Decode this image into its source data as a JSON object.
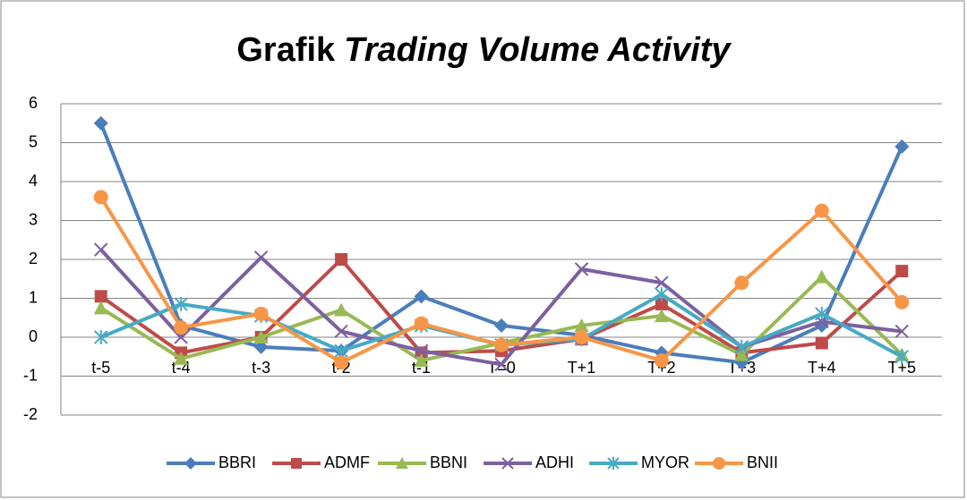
{
  "chart_data": {
    "type": "line",
    "title": [
      "Grafik",
      "Trading Volume Activity"
    ],
    "categories": [
      "t-5",
      "t-4",
      "t-3",
      "t-2",
      "t-1",
      "T=0",
      "T+1",
      "T+2",
      "T+3",
      "T+4",
      "T+5"
    ],
    "series": [
      {
        "name": "BBRI",
        "color": "#4a7ebb",
        "marker": "diamond",
        "values": [
          5.5,
          0.3,
          -0.25,
          -0.35,
          1.05,
          0.3,
          0.05,
          -0.4,
          -0.65,
          0.3,
          4.9
        ]
      },
      {
        "name": "ADMF",
        "color": "#be4b48",
        "marker": "square",
        "values": [
          1.05,
          -0.4,
          0.0,
          2.0,
          -0.4,
          -0.35,
          -0.05,
          0.85,
          -0.4,
          -0.15,
          1.7
        ]
      },
      {
        "name": "BBNI",
        "color": "#98b954",
        "marker": "triangle",
        "values": [
          0.75,
          -0.55,
          0.0,
          0.7,
          -0.6,
          -0.15,
          0.3,
          0.55,
          -0.45,
          1.55,
          -0.45
        ]
      },
      {
        "name": "ADHI",
        "color": "#7d60a0",
        "marker": "x",
        "values": [
          2.25,
          0.0,
          2.05,
          0.15,
          -0.35,
          -0.7,
          1.75,
          1.4,
          -0.25,
          0.4,
          0.15
        ]
      },
      {
        "name": "MYOR",
        "color": "#46aac5",
        "marker": "star",
        "values": [
          0.0,
          0.85,
          0.55,
          -0.35,
          0.3,
          -0.2,
          -0.05,
          1.1,
          -0.25,
          0.6,
          -0.5
        ]
      },
      {
        "name": "BNII",
        "color": "#f79646",
        "marker": "circle",
        "values": [
          3.6,
          0.25,
          0.6,
          -0.65,
          0.35,
          -0.2,
          0.0,
          -0.6,
          1.4,
          3.25,
          0.9
        ]
      }
    ],
    "ylim": [
      -2,
      6
    ],
    "yticks": [
      -2,
      -1,
      0,
      1,
      2,
      3,
      4,
      5,
      6
    ],
    "grid": true,
    "legend": "bottom"
  }
}
